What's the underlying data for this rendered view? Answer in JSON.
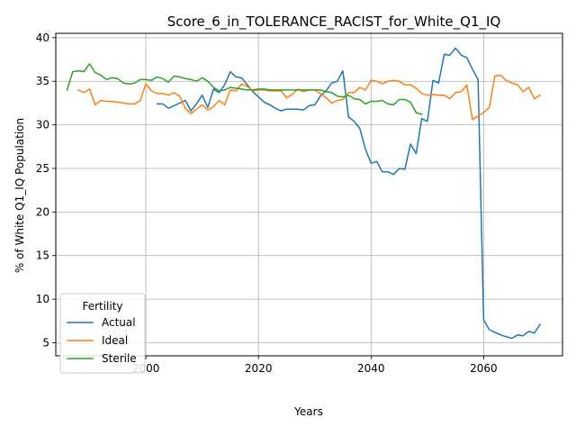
{
  "chart_data": {
    "type": "line",
    "title": "Score_6_in_TOLERANCE_RACIST_for_White_Q1_IQ",
    "xlabel": "Years",
    "ylabel": "% of White Q1_IQ Population",
    "xlim": [
      1984,
      2074
    ],
    "ylim": [
      3.5,
      40.5
    ],
    "xticks": [
      2000,
      2020,
      2040,
      2060
    ],
    "yticks": [
      5,
      10,
      15,
      20,
      25,
      30,
      35,
      40
    ],
    "grid": true,
    "legend": {
      "title": "Fertility",
      "position": "lower left"
    },
    "series": [
      {
        "name": "Actual",
        "color": "#1f77b4",
        "x": [
          2002,
          2003,
          2004,
          2005,
          2006,
          2007,
          2008,
          2009,
          2010,
          2011,
          2012,
          2013,
          2014,
          2015,
          2016,
          2017,
          2018,
          2019,
          2020,
          2021,
          2022,
          2023,
          2024,
          2025,
          2026,
          2027,
          2028,
          2029,
          2030,
          2031,
          2032,
          2033,
          2034,
          2035,
          2036,
          2037,
          2038,
          2039,
          2040,
          2041,
          2042,
          2043,
          2044,
          2045,
          2046,
          2047,
          2048,
          2049,
          2050,
          2051,
          2052,
          2053,
          2054,
          2055,
          2056,
          2057,
          2058,
          2059,
          2060,
          2061,
          2062,
          2063,
          2064,
          2065,
          2066,
          2067,
          2068,
          2069,
          2070
        ],
        "y": [
          32.4,
          32.4,
          31.9,
          32.2,
          32.5,
          32.8,
          31.6,
          32.4,
          33.4,
          32.0,
          34.1,
          33.7,
          34.6,
          36.1,
          35.5,
          35.4,
          34.6,
          33.8,
          33.2,
          32.6,
          32.3,
          31.9,
          31.6,
          31.8,
          31.8,
          31.8,
          31.7,
          32.2,
          32.3,
          33.3,
          33.9,
          34.8,
          35.0,
          36.2,
          30.9,
          30.4,
          29.6,
          27.2,
          25.6,
          25.8,
          24.6,
          24.6,
          24.3,
          25.0,
          24.9,
          27.8,
          26.7,
          30.7,
          30.4,
          35.1,
          34.8,
          38.1,
          38.0,
          38.8,
          38.0,
          37.7,
          36.4,
          35.2,
          7.6,
          6.5,
          6.2,
          5.9,
          5.7,
          5.5,
          5.9,
          5.8,
          6.3,
          6.1,
          7.1
        ]
      },
      {
        "name": "Ideal",
        "color": "#ff7f0e",
        "x": [
          1988,
          1989,
          1990,
          1991,
          1992,
          1993,
          1994,
          1995,
          1996,
          1997,
          1998,
          1999,
          2000,
          2001,
          2002,
          2003,
          2004,
          2005,
          2006,
          2007,
          2008,
          2009,
          2010,
          2011,
          2012,
          2013,
          2014,
          2015,
          2016,
          2017,
          2018,
          2019,
          2020,
          2021,
          2022,
          2023,
          2024,
          2025,
          2026,
          2027,
          2028,
          2029,
          2030,
          2031,
          2032,
          2033,
          2034,
          2035,
          2036,
          2037,
          2038,
          2039,
          2040,
          2041,
          2042,
          2043,
          2044,
          2045,
          2046,
          2047,
          2048,
          2049,
          2050,
          2051,
          2052,
          2053,
          2054,
          2055,
          2056,
          2057,
          2058,
          2059,
          2060,
          2061,
          2062,
          2063,
          2064,
          2065,
          2066,
          2067,
          2068,
          2069,
          2070
        ],
        "y": [
          34.0,
          33.7,
          34.1,
          32.3,
          32.8,
          32.7,
          32.7,
          32.6,
          32.5,
          32.4,
          32.4,
          32.8,
          34.7,
          33.9,
          33.6,
          33.6,
          33.4,
          33.7,
          33.3,
          31.9,
          31.3,
          31.8,
          32.3,
          31.7,
          32.1,
          32.8,
          32.3,
          34.0,
          33.9,
          34.7,
          34.4,
          33.9,
          34.0,
          34.0,
          33.9,
          33.9,
          33.9,
          33.1,
          33.5,
          34.1,
          33.8,
          34.0,
          34.0,
          33.6,
          33.1,
          32.5,
          32.8,
          32.9,
          33.7,
          33.7,
          34.3,
          34.0,
          35.1,
          35.0,
          34.7,
          35.0,
          35.1,
          35.0,
          34.6,
          34.6,
          34.2,
          33.6,
          33.4,
          33.5,
          33.4,
          33.4,
          33.0,
          33.7,
          33.8,
          34.6,
          30.6,
          31.0,
          31.4,
          32.0,
          35.6,
          35.7,
          35.1,
          34.8,
          34.6,
          33.8,
          34.3,
          33.0,
          33.4
        ]
      },
      {
        "name": "Sterile",
        "color": "#2ca02c",
        "x": [
          1986,
          1987,
          1988,
          1989,
          1990,
          1991,
          1992,
          1993,
          1994,
          1995,
          1996,
          1997,
          1998,
          1999,
          2000,
          2001,
          2002,
          2003,
          2004,
          2005,
          2006,
          2007,
          2008,
          2009,
          2010,
          2011,
          2012,
          2013,
          2014,
          2015,
          2016,
          2017,
          2018,
          2019,
          2020,
          2021,
          2022,
          2023,
          2024,
          2025,
          2026,
          2027,
          2028,
          2029,
          2030,
          2031,
          2032,
          2033,
          2034,
          2035,
          2036,
          2037,
          2038,
          2039,
          2040,
          2041,
          2042,
          2043,
          2044,
          2045,
          2046,
          2047,
          2048,
          2049
        ],
        "y": [
          34.0,
          36.1,
          36.2,
          36.1,
          37.0,
          36.0,
          35.7,
          35.2,
          35.4,
          35.3,
          34.8,
          34.7,
          34.8,
          35.2,
          35.2,
          35.1,
          35.5,
          35.3,
          34.9,
          35.6,
          35.5,
          35.3,
          35.2,
          35.0,
          35.4,
          35.0,
          34.3,
          33.9,
          34.0,
          34.3,
          34.2,
          34.1,
          34.0,
          34.0,
          34.1,
          34.1,
          34.0,
          34.0,
          34.0,
          34.0,
          34.0,
          34.0,
          34.0,
          34.0,
          34.0,
          34.0,
          33.8,
          33.7,
          33.3,
          33.2,
          33.4,
          33.0,
          32.9,
          32.4,
          32.7,
          32.7,
          32.8,
          32.4,
          32.3,
          32.9,
          32.9,
          32.6,
          31.4,
          31.2
        ]
      }
    ]
  }
}
